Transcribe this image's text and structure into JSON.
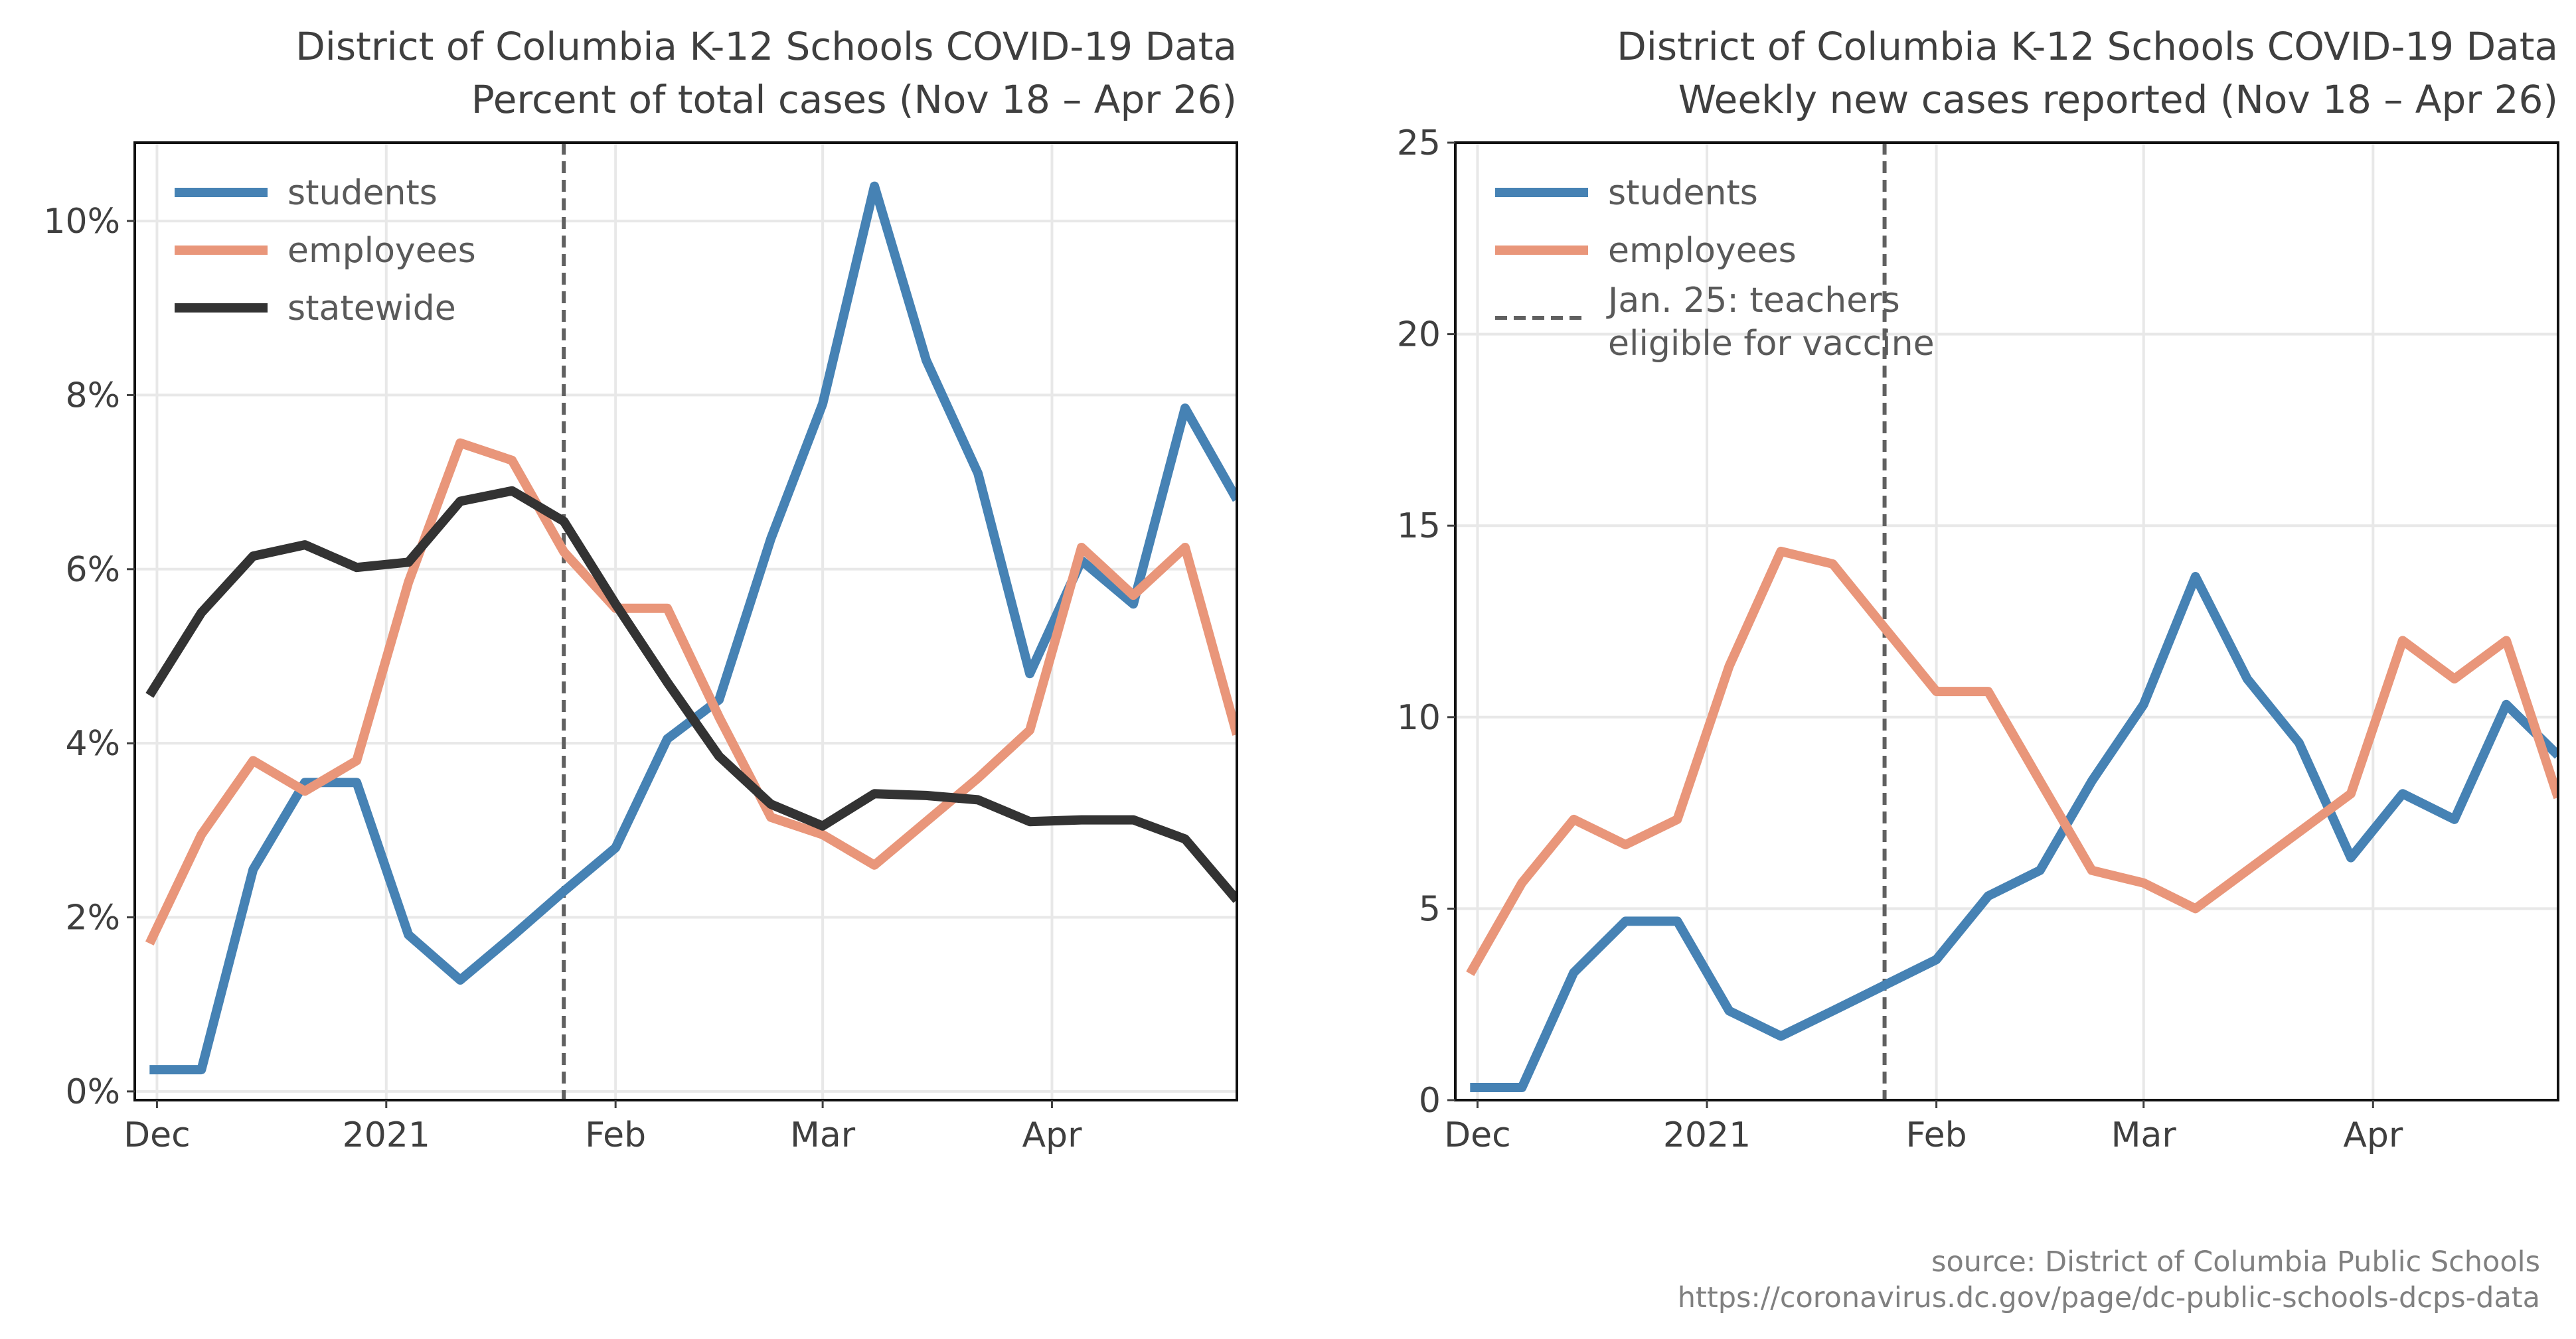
{
  "colors": {
    "students": "#4682b4",
    "employees": "#e9967a",
    "statewide": "#333333",
    "vline": "#606060"
  },
  "source": {
    "line1": "source: District of Columbia Public Schools",
    "line2": "https://coronavirus.dc.gov/page/dc-public-schools-dcps-data"
  },
  "chart_data": [
    {
      "type": "line",
      "title": "District of Columbia K-12 Schools COVID-19 Data",
      "subtitle": "Percent of total cases (Nov 18 – Apr 26)",
      "xlabel": "",
      "ylabel": "",
      "x": [
        "2020-11-30",
        "2020-12-07",
        "2020-12-14",
        "2020-12-21",
        "2020-12-28",
        "2021-01-04",
        "2021-01-11",
        "2021-01-18",
        "2021-01-25",
        "2021-02-01",
        "2021-02-08",
        "2021-02-15",
        "2021-02-22",
        "2021-03-01",
        "2021-03-08",
        "2021-03-15",
        "2021-03-22",
        "2021-03-29",
        "2021-04-05",
        "2021-04-12",
        "2021-04-19",
        "2021-04-26"
      ],
      "xlim": [
        "2020-11-28",
        "2021-04-26"
      ],
      "xticks": [
        {
          "date": "2020-12-01",
          "label": "Dec"
        },
        {
          "date": "2021-01-01",
          "label": "2021"
        },
        {
          "date": "2021-02-01",
          "label": "Feb"
        },
        {
          "date": "2021-03-01",
          "label": "Mar"
        },
        {
          "date": "2021-04-01",
          "label": "Apr"
        }
      ],
      "ylim": [
        -0.1,
        10.9
      ],
      "yticks": [
        {
          "value": 0,
          "label": "0%"
        },
        {
          "value": 2,
          "label": "2%"
        },
        {
          "value": 4,
          "label": "4%"
        },
        {
          "value": 6,
          "label": "6%"
        },
        {
          "value": 8,
          "label": "8%"
        },
        {
          "value": 10,
          "label": "10%"
        }
      ],
      "grid": true,
      "legend": "top-left",
      "vline": {
        "date": "2021-01-25",
        "style": "dashed"
      },
      "series": [
        {
          "name": "students",
          "color": "#4682b4",
          "values": [
            0.25,
            0.25,
            2.55,
            3.55,
            3.55,
            1.8,
            1.28,
            1.78,
            2.3,
            2.8,
            4.05,
            4.5,
            6.35,
            7.9,
            10.4,
            8.4,
            7.1,
            4.8,
            6.1,
            5.6,
            7.85,
            6.8
          ]
        },
        {
          "name": "employees",
          "color": "#e9967a",
          "values": [
            1.7,
            2.95,
            3.8,
            3.45,
            3.8,
            5.85,
            7.45,
            7.25,
            6.2,
            5.55,
            5.55,
            4.3,
            3.15,
            2.95,
            2.6,
            3.1,
            3.6,
            4.15,
            6.25,
            5.7,
            6.25,
            4.1
          ]
        },
        {
          "name": "statewide",
          "color": "#333333",
          "values": [
            4.55,
            5.5,
            6.15,
            6.28,
            6.02,
            6.08,
            6.78,
            6.9,
            6.55,
            5.6,
            4.7,
            3.85,
            3.3,
            3.05,
            3.42,
            3.4,
            3.35,
            3.1,
            3.12,
            3.12,
            2.9,
            2.2
          ]
        }
      ]
    },
    {
      "type": "line",
      "title": "District of Columbia K-12 Schools COVID-19 Data",
      "subtitle": "Weekly new cases reported (Nov 18 – Apr 26)",
      "xlabel": "",
      "ylabel": "",
      "x": [
        "2020-11-30",
        "2020-12-07",
        "2020-12-14",
        "2020-12-21",
        "2020-12-28",
        "2021-01-04",
        "2021-01-11",
        "2021-01-18",
        "2021-01-25",
        "2021-02-01",
        "2021-02-08",
        "2021-02-15",
        "2021-02-22",
        "2021-03-01",
        "2021-03-08",
        "2021-03-15",
        "2021-03-22",
        "2021-03-29",
        "2021-04-05",
        "2021-04-12",
        "2021-04-19",
        "2021-04-26"
      ],
      "xlim": [
        "2020-11-28",
        "2021-04-26"
      ],
      "xticks": [
        {
          "date": "2020-12-01",
          "label": "Dec"
        },
        {
          "date": "2021-01-01",
          "label": "2021"
        },
        {
          "date": "2021-02-01",
          "label": "Feb"
        },
        {
          "date": "2021-03-01",
          "label": "Mar"
        },
        {
          "date": "2021-04-01",
          "label": "Apr"
        }
      ],
      "ylim": [
        0,
        25
      ],
      "yticks": [
        {
          "value": 0,
          "label": "0"
        },
        {
          "value": 5,
          "label": "5"
        },
        {
          "value": 10,
          "label": "10"
        },
        {
          "value": 15,
          "label": "15"
        },
        {
          "value": 20,
          "label": "20"
        },
        {
          "value": 25,
          "label": "25"
        }
      ],
      "grid": true,
      "legend": "top-left",
      "vline": {
        "date": "2021-01-25",
        "style": "dashed",
        "label": "Jan. 25: teachers\neligible for vaccine"
      },
      "series": [
        {
          "name": "students",
          "color": "#4682b4",
          "values": [
            0.33,
            0.33,
            3.33,
            4.67,
            4.67,
            2.33,
            1.67,
            2.33,
            3.0,
            3.67,
            5.33,
            6.0,
            8.33,
            10.33,
            13.67,
            11.0,
            9.33,
            6.33,
            8.0,
            7.33,
            10.33,
            9.0
          ]
        },
        {
          "name": "employees",
          "color": "#e9967a",
          "values": [
            3.3,
            5.67,
            7.33,
            6.67,
            7.33,
            11.33,
            14.33,
            14.0,
            12.33,
            10.67,
            10.67,
            8.33,
            6.0,
            5.67,
            5.0,
            6.0,
            7.0,
            8.0,
            12.0,
            11.0,
            12.0,
            7.9
          ]
        }
      ]
    }
  ]
}
